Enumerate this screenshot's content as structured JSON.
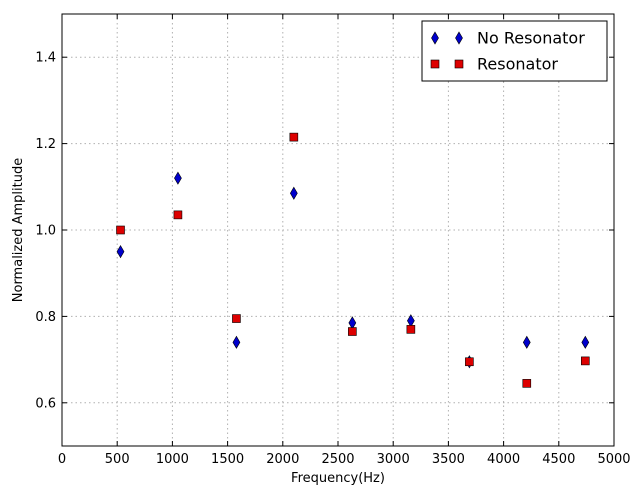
{
  "chart_data": {
    "type": "scatter",
    "title": "",
    "xlabel": "Frequency(Hz)",
    "ylabel": "Normalized Amplitude",
    "xlim": [
      0,
      5000
    ],
    "ylim": [
      0.5,
      1.5
    ],
    "xticks": [
      0,
      500,
      1000,
      1500,
      2000,
      2500,
      3000,
      3500,
      4000,
      4500,
      5000
    ],
    "yticks": [
      0.6,
      0.8,
      1.0,
      1.2,
      1.4
    ],
    "xtick_labels": [
      "0",
      "500",
      "1000",
      "1500",
      "2000",
      "2500",
      "3000",
      "3500",
      "4000",
      "4500",
      "5000"
    ],
    "ytick_labels": [
      "0.6",
      "0.8",
      "1.0",
      "1.2",
      "1.4"
    ],
    "grid": true,
    "legend_position": "top-right",
    "series": [
      {
        "name": "No Resonator",
        "marker": "diamond",
        "color": "#0000cc",
        "x": [
          530,
          1050,
          1580,
          2100,
          2630,
          3160,
          3690,
          4210,
          4740
        ],
        "y": [
          0.95,
          1.12,
          0.74,
          1.085,
          0.785,
          0.79,
          0.695,
          0.74,
          0.74
        ]
      },
      {
        "name": "Resonator",
        "marker": "square",
        "color": "#dd0000",
        "x": [
          530,
          1050,
          1580,
          2100,
          2630,
          3160,
          3690,
          4210,
          4740
        ],
        "y": [
          1.0,
          1.035,
          0.795,
          1.215,
          0.765,
          0.77,
          0.695,
          0.645,
          0.697
        ]
      }
    ]
  }
}
